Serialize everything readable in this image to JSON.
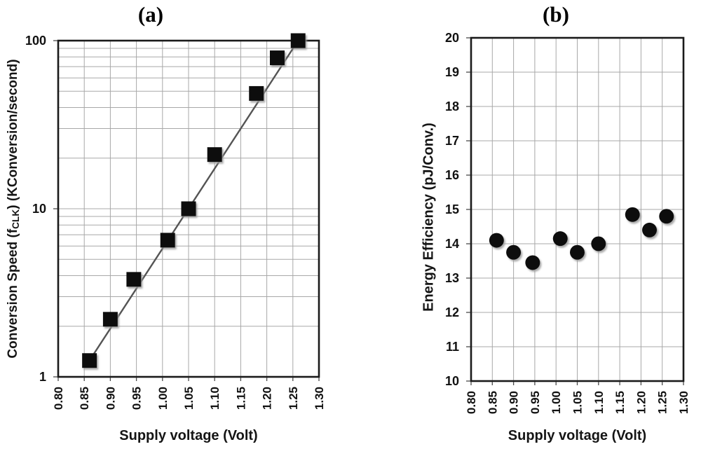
{
  "page": {
    "background": "#ffffff"
  },
  "chart_data": [
    {
      "type": "scatter",
      "title": "(a)",
      "xlabel": "Supply voltage (Volt)",
      "ylabel": "Conversion Speed (fCLK) (KConversion/second)",
      "ylabel_parts": [
        "Conversion Speed (f",
        "CLK",
        ") (KConversion/second)"
      ],
      "x_scale": "linear",
      "y_scale": "log",
      "xlim": [
        0.8,
        1.3
      ],
      "ylim": [
        1,
        100
      ],
      "x_tick_labels": [
        "0.80",
        "0.85",
        "0.90",
        "0.95",
        "1.00",
        "1.05",
        "1.10",
        "1.15",
        "1.20",
        "1.25",
        "1.30"
      ],
      "y_tick_values": [
        1,
        10,
        100
      ],
      "y_tick_labels": [
        "1",
        "10",
        "100"
      ],
      "grid": true,
      "marker": "square",
      "marker_color": "#0a0a0a",
      "trend_line": true,
      "trend_color": "#545454",
      "grid_color": "#a8a8a8",
      "frame_color": "#1a1a1a",
      "x": [
        0.86,
        0.9,
        0.945,
        1.01,
        1.05,
        1.1,
        1.18,
        1.22,
        1.26
      ],
      "y": [
        1.25,
        2.2,
        3.8,
        6.5,
        10,
        21,
        48.5,
        79,
        100
      ]
    },
    {
      "type": "scatter",
      "title": "(b)",
      "xlabel": "Supply voltage (Volt)",
      "ylabel": "Energy Efficiency (pJ/Conv.)",
      "x_scale": "linear",
      "y_scale": "linear",
      "xlim": [
        0.8,
        1.3
      ],
      "ylim": [
        10,
        20
      ],
      "x_tick_labels": [
        "0.80",
        "0.85",
        "0.90",
        "0.95",
        "1.00",
        "1.05",
        "1.10",
        "1.15",
        "1.20",
        "1.25",
        "1.30"
      ],
      "y_tick_values": [
        10,
        11,
        12,
        13,
        14,
        15,
        16,
        17,
        18,
        19,
        20
      ],
      "y_tick_labels": [
        "10",
        "11",
        "12",
        "13",
        "14",
        "15",
        "16",
        "17",
        "18",
        "19",
        "20"
      ],
      "grid": true,
      "marker": "circle",
      "marker_color": "#0a0a0a",
      "trend_line": false,
      "grid_color": "#a8a8a8",
      "frame_color": "#1a1a1a",
      "x": [
        0.86,
        0.9,
        0.945,
        1.01,
        1.05,
        1.1,
        1.18,
        1.22,
        1.26
      ],
      "y": [
        14.1,
        13.75,
        13.45,
        14.15,
        13.75,
        14.0,
        14.85,
        14.4,
        14.8
      ]
    }
  ]
}
